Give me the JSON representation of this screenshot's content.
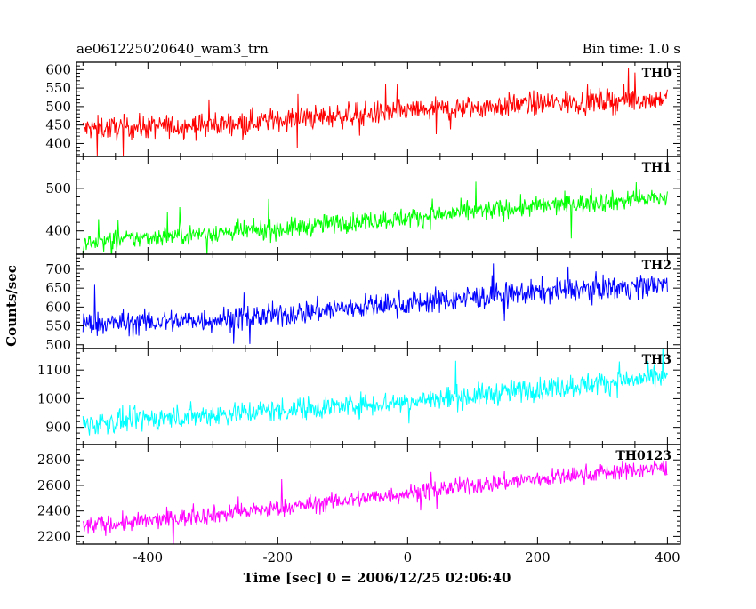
{
  "header": {
    "title": "ae061225020640_wam3_trn",
    "bin_time": "Bin time: 1.0 s"
  },
  "chart_data": {
    "type": "line",
    "xlabel": "Time [sec] 0 = 2006/12/25 02:06:40",
    "ylabel": "Counts/sec",
    "xlim": [
      -510,
      420
    ],
    "xticks": [
      -400,
      -200,
      0,
      200,
      400
    ],
    "sample_step": 1.0,
    "panels": [
      {
        "name": "TH0",
        "color": "#ff0000",
        "ylim": [
          365,
          620
        ],
        "yticks": [
          400,
          450,
          500,
          550,
          600
        ],
        "series": {
          "x": [
            -500,
            -400,
            -300,
            -200,
            -100,
            0,
            100,
            200,
            300,
            400
          ],
          "y": [
            440,
            445,
            450,
            465,
            475,
            488,
            497,
            508,
            515,
            522
          ],
          "noise_amplitude": 55
        }
      },
      {
        "name": "TH1",
        "color": "#00ff00",
        "ylim": [
          345,
          575
        ],
        "yticks": [
          400,
          500
        ],
        "series": {
          "x": [
            -500,
            -400,
            -300,
            -200,
            -100,
            0,
            100,
            200,
            300,
            400
          ],
          "y": [
            370,
            385,
            395,
            403,
            420,
            430,
            445,
            457,
            468,
            478
          ],
          "noise_amplitude": 40
        }
      },
      {
        "name": "TH2",
        "color": "#0000ff",
        "ylim": [
          490,
          740
        ],
        "yticks": [
          500,
          550,
          600,
          650,
          700
        ],
        "series": {
          "x": [
            -500,
            -400,
            -300,
            -200,
            -100,
            0,
            100,
            200,
            300,
            400
          ],
          "y": [
            555,
            560,
            567,
            578,
            597,
            610,
            625,
            640,
            650,
            660
          ],
          "noise_amplitude": 55
        }
      },
      {
        "name": "TH3",
        "color": "#00ffff",
        "ylim": [
          840,
          1175
        ],
        "yticks": [
          900,
          1000,
          1100
        ],
        "series": {
          "x": [
            -500,
            -400,
            -300,
            -200,
            -100,
            0,
            100,
            200,
            300,
            400
          ],
          "y": [
            910,
            930,
            945,
            960,
            975,
            990,
            1010,
            1035,
            1055,
            1075
          ],
          "noise_amplitude": 70
        }
      },
      {
        "name": "TH0123",
        "color": "#ff00ff",
        "ylim": [
          2140,
          2920
        ],
        "yticks": [
          2200,
          2400,
          2600,
          2800
        ],
        "series": {
          "x": [
            -500,
            -400,
            -300,
            -200,
            -100,
            0,
            100,
            200,
            300,
            400
          ],
          "y": [
            2280,
            2320,
            2370,
            2420,
            2480,
            2540,
            2600,
            2650,
            2700,
            2740
          ],
          "noise_amplitude": 120
        }
      }
    ]
  }
}
